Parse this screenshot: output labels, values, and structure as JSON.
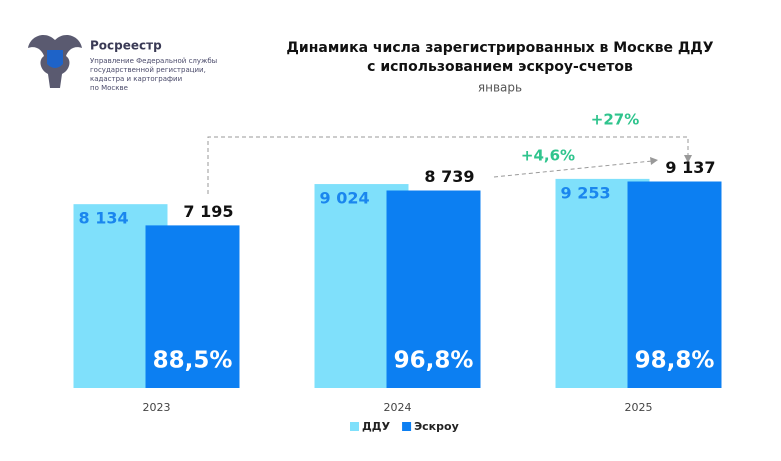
{
  "logo": {
    "name": "Росреестр",
    "lines": [
      "Управление Федеральной службы",
      "государственной регистрации,",
      "кадастра и картографии",
      "по Москве"
    ]
  },
  "chart_data": {
    "type": "bar",
    "title": [
      "Динамика числа зарегистрированных в Москве ДДУ",
      "с использованием эскроу-счетов"
    ],
    "subtitle": "январь",
    "categories": [
      "2023",
      "2024",
      "2025"
    ],
    "series": [
      {
        "name": "ДДУ",
        "color": "#7fe0fb",
        "values": [
          8134,
          9024,
          9253
        ],
        "value_labels": [
          "8 134",
          "9 024",
          "9 253"
        ]
      },
      {
        "name": "Эскроу",
        "color": "#0c7ff2",
        "values": [
          7195,
          8739,
          9137
        ],
        "value_labels": [
          "7 195",
          "8 739",
          "9 137"
        ]
      }
    ],
    "share_labels": [
      "88,5%",
      "96,8%",
      "98,8%"
    ],
    "annotations": [
      "+27%",
      "+4,6%"
    ],
    "ylim": [
      0,
      10000
    ],
    "legend": "bottom"
  }
}
